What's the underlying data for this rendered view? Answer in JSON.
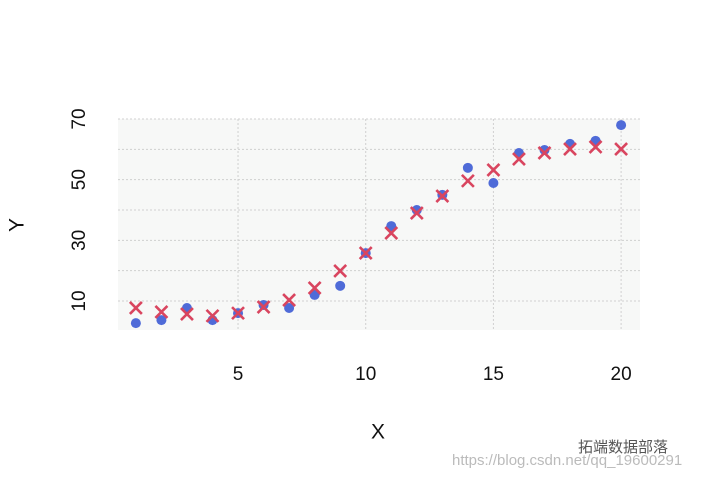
{
  "chart_data": {
    "type": "scatter",
    "x_label": "X",
    "y_label": "Y",
    "x": [
      1,
      2,
      3,
      4,
      5,
      6,
      7,
      8,
      9,
      10,
      11,
      12,
      13,
      14,
      15,
      16,
      17,
      18,
      19,
      20
    ],
    "series": [
      {
        "color": "#4f6bd8",
        "marker": "circle",
        "values": [
          2.7,
          3.7,
          7.7,
          3.7,
          6.0,
          8.7,
          7.7,
          12,
          15,
          25.8,
          34.7,
          40,
          45,
          53.9,
          48.9,
          58.8,
          59.8,
          61.8,
          62.8,
          68
        ]
      },
      {
        "color": "#d9455f",
        "marker": "x",
        "values": [
          7.7,
          6.4,
          5.7,
          5.1,
          6.0,
          8.0,
          10.3,
          14.3,
          19.9,
          25.8,
          32.4,
          39,
          44.6,
          49.6,
          53.2,
          56.8,
          58.8,
          60.1,
          60.8,
          60.1
        ]
      }
    ],
    "xlim": [
      0.3,
      20.74
    ],
    "ylim": [
      0.44,
      70
    ],
    "xticks": [
      5,
      10,
      15,
      20
    ],
    "yticks": [
      10,
      30,
      50,
      70
    ],
    "yminor": [
      20,
      40,
      60
    ],
    "grid": true,
    "watermark": [
      "拓端数据部落",
      "https://blog.csdn.net/qq_19600291"
    ]
  }
}
